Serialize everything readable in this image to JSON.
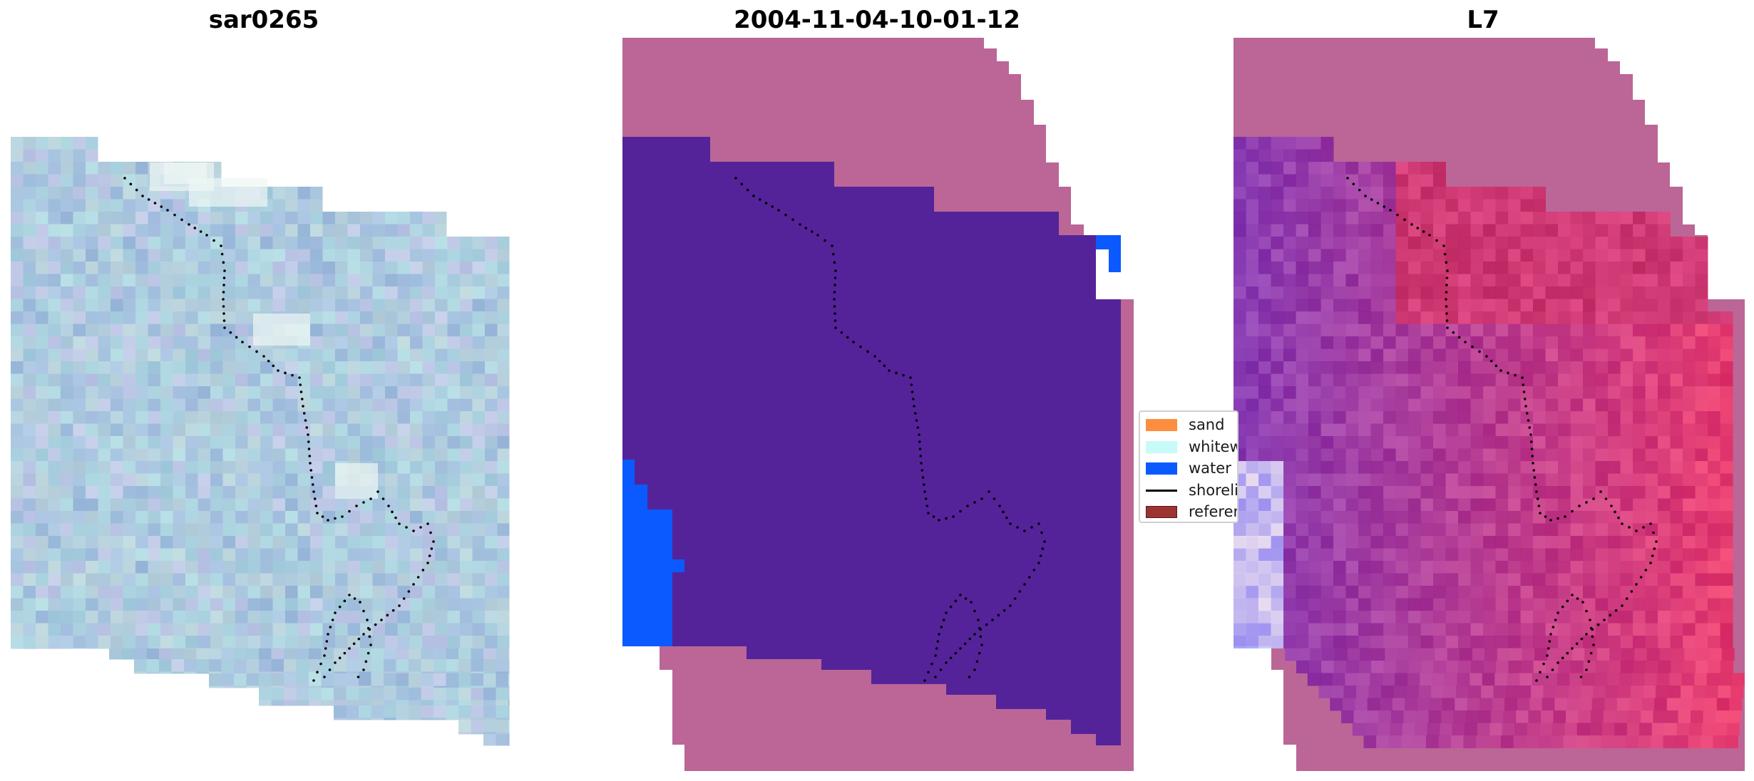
{
  "panels": [
    {
      "title": "sar0265"
    },
    {
      "title": "2004-11-04-10-01-12"
    },
    {
      "title": "L7"
    }
  ],
  "legend": {
    "items": [
      {
        "label": "sand",
        "color": "#fd8e3f"
      },
      {
        "label": "whitewater",
        "color": "#c8faf8"
      },
      {
        "label": "water",
        "color": "#0a5aff"
      },
      {
        "label": "shoreline",
        "color": "#000000"
      },
      {
        "label": "reference shoreline",
        "color": "#9b3433"
      }
    ]
  },
  "colors": {
    "nodata_overlay": "#bb6696",
    "other_class": "#54239a",
    "water": "#0a5aff",
    "shoreline_dots": "#000000"
  }
}
